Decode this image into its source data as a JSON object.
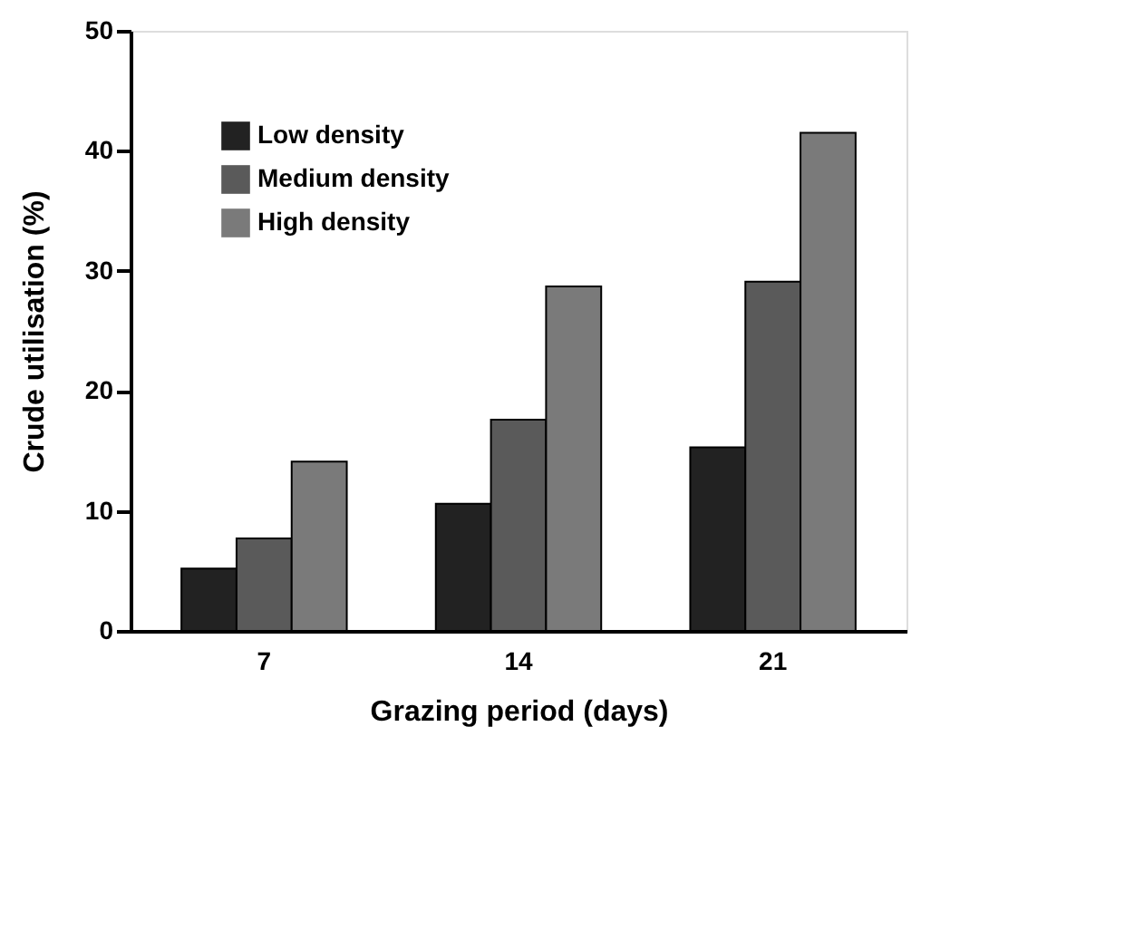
{
  "chart_data": {
    "type": "bar",
    "xlabel": "Grazing period (days)",
    "ylabel": "Crude  utilisation  (%)",
    "categories": [
      "7",
      "14",
      "21"
    ],
    "series": [
      {
        "name": "Low density",
        "color": "#222222",
        "values": [
          5.2,
          10.6,
          15.3
        ]
      },
      {
        "name": "Medium density",
        "color": "#5a5a5a",
        "values": [
          7.7,
          17.6,
          29.1
        ]
      },
      {
        "name": "High density",
        "color": "#7a7a7a",
        "values": [
          14.1,
          28.7,
          41.5
        ]
      }
    ],
    "ylim": [
      0,
      50
    ],
    "yticks": [
      0,
      10,
      20,
      30,
      40,
      50
    ],
    "grid": false,
    "legend": "top left"
  }
}
